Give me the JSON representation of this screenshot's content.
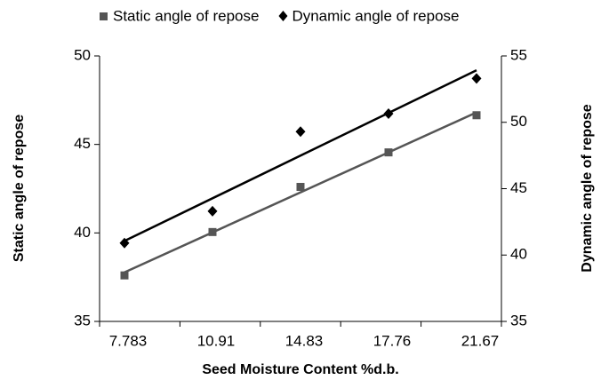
{
  "chart_data": {
    "type": "scatter",
    "categories": [
      "7.783",
      "10.91",
      "14.83",
      "17.76",
      "21.67"
    ],
    "xlabel": "Seed Moisture Content %d.b.",
    "ylabel": "Static angle of repose",
    "y2label": "Dynamic angle of repose",
    "ylim": [
      35,
      50
    ],
    "yticks": [
      35,
      40,
      45,
      50
    ],
    "y2lim": [
      35,
      55
    ],
    "y2ticks": [
      35,
      40,
      45,
      50,
      55
    ],
    "trendline": true,
    "legend": "top",
    "series": [
      {
        "name": "Static angle of repose",
        "color": "#555555",
        "marker": "square",
        "values": [
          37.6,
          40.05,
          42.6,
          44.55,
          46.65
        ]
      },
      {
        "name": "Dynamic angle of repose",
        "color": "#000000",
        "marker": "diamond",
        "axis": "y2",
        "values": [
          40.9,
          43.3,
          49.3,
          50.65,
          53.3
        ]
      }
    ]
  }
}
